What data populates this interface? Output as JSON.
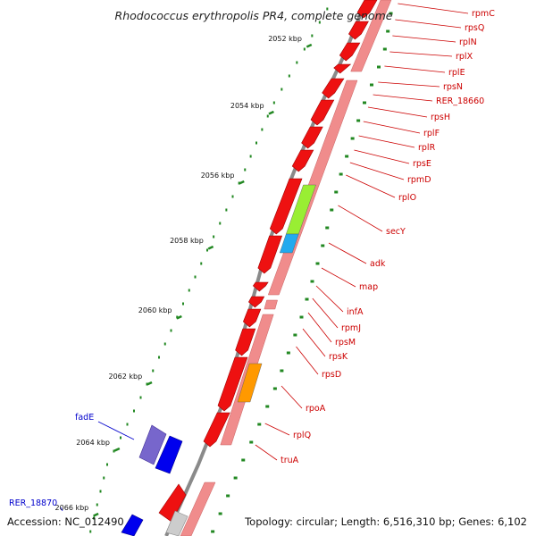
{
  "title": "Rhodococcus erythropolis PR4, complete genome",
  "footer": {
    "accession": "Accession: NC_012490",
    "stats": "Topology: circular; Length: 6,516,310 bp; Genes: 6,102"
  },
  "colors": {
    "gene_red": "#ee1111",
    "gene_pink": "#f08c8c",
    "secY": "#99ee33",
    "adk": "#22aaee",
    "rpoA": "#ff9900",
    "fadE": "#7766cc",
    "blue": "#0000ee",
    "label_red": "#cc0000",
    "label_blue": "#0000cc",
    "tick_green": "#228822",
    "backbone": "#8a8a8a"
  },
  "kbp_ticks": [
    "2052 kbp",
    "2054 kbp",
    "2056 kbp",
    "2058 kbp",
    "2060 kbp",
    "2062 kbp",
    "2064 kbp",
    "2066 kbp"
  ],
  "genes_right": [
    "rpmC",
    "rpsQ",
    "rplN",
    "rplX",
    "rplE",
    "rpsN",
    "RER_18660",
    "rpsH",
    "rplF",
    "rplR",
    "rpsE",
    "rpmD",
    "rplO",
    "secY",
    "adk",
    "map",
    "infA",
    "rpmJ",
    "rpsM",
    "rpsK",
    "rpsD",
    "rpoA",
    "rplQ",
    "truA"
  ],
  "genes_left": [
    "fadE",
    "RER_18870"
  ]
}
